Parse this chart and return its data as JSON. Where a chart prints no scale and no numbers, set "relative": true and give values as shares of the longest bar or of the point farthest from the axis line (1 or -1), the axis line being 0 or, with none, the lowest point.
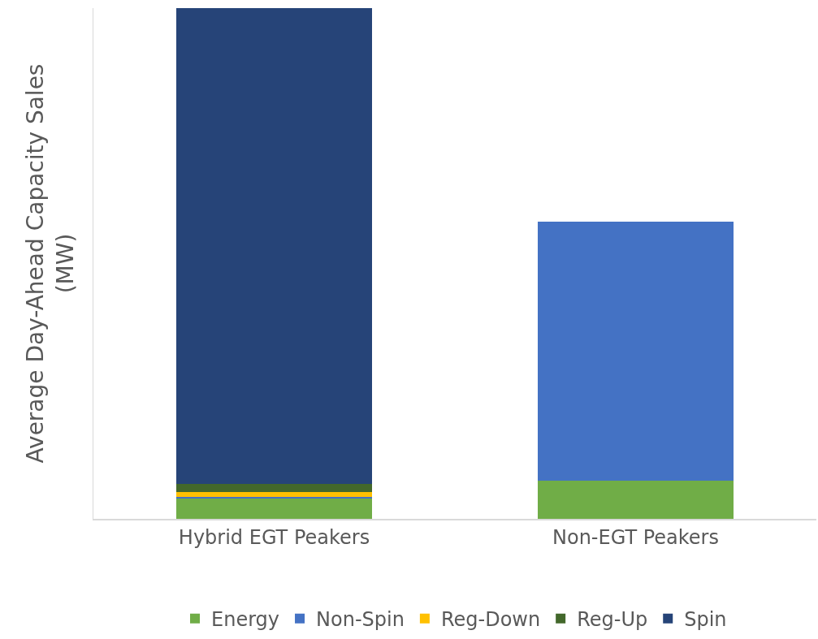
{
  "chart_data": {
    "type": "bar",
    "stacked": true,
    "relative": true,
    "ylabel": "Average Day-Ahead Capacity Sales (MW)",
    "categories": [
      "Hybrid EGT Peakers",
      "Non-EGT Peakers"
    ],
    "legend": "bottom",
    "series": [
      {
        "name": "Energy",
        "color": "#70ad47",
        "values": [
          0.039,
          0.075
        ]
      },
      {
        "name": "Non-Spin",
        "color": "#4472c4",
        "values": [
          0.004,
          0.507
        ]
      },
      {
        "name": "Reg-Down",
        "color": "#ffc000",
        "values": [
          0.009,
          0
        ]
      },
      {
        "name": "Reg-Up",
        "color": "#43682b",
        "values": [
          0.016,
          0
        ]
      },
      {
        "name": "Spin",
        "color": "#264478",
        "values": [
          0.932,
          0
        ]
      }
    ]
  }
}
